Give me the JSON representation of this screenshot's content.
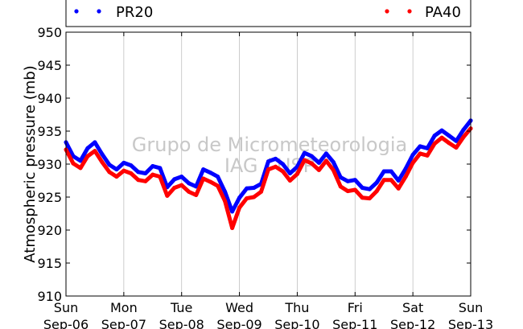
{
  "chart_data": {
    "type": "scatter",
    "ylabel": "Atmospheric pressure (mb)",
    "ylim": [
      910,
      950
    ],
    "yticks": [
      "910",
      "915",
      "920",
      "925",
      "930",
      "935",
      "940",
      "945",
      "950"
    ],
    "x_start": "2015-09-06 00:00",
    "x_end": "2015-09-13 00:00",
    "xticks": [
      {
        "day": "Sun",
        "date": "Sep-06"
      },
      {
        "day": "Mon",
        "date": "Sep-07"
      },
      {
        "day": "Tue",
        "date": "Sep-08"
      },
      {
        "day": "Wed",
        "date": "Sep-09"
      },
      {
        "day": "Thu",
        "date": "Sep-10"
      },
      {
        "day": "Fri",
        "date": "Sep-11"
      },
      {
        "day": "Sat",
        "date": "Sep-12"
      },
      {
        "day": "Sun",
        "date": "Sep-13"
      }
    ],
    "grid": true,
    "legend_position": "top",
    "watermark": [
      "Grupo de Micrometeorologia",
      "IAG / USP"
    ],
    "series": [
      {
        "name": "PR20",
        "color": "#0000ff",
        "points": [
          [
            "2015-09-06 00:00",
            933.3
          ],
          [
            "2015-09-06 03:00",
            931.2
          ],
          [
            "2015-09-06 06:00",
            930.5
          ],
          [
            "2015-09-06 09:00",
            932.4
          ],
          [
            "2015-09-06 12:00",
            933.3
          ],
          [
            "2015-09-06 15:00",
            931.5
          ],
          [
            "2015-09-06 18:00",
            929.9
          ],
          [
            "2015-09-06 21:00",
            929.2
          ],
          [
            "2015-09-07 00:00",
            930.2
          ],
          [
            "2015-09-07 03:00",
            929.8
          ],
          [
            "2015-09-07 06:00",
            928.8
          ],
          [
            "2015-09-07 09:00",
            928.6
          ],
          [
            "2015-09-07 12:00",
            929.7
          ],
          [
            "2015-09-07 15:00",
            929.4
          ],
          [
            "2015-09-07 18:00",
            926.5
          ],
          [
            "2015-09-07 21:00",
            927.7
          ],
          [
            "2015-09-08 00:00",
            928.1
          ],
          [
            "2015-09-08 03:00",
            927.1
          ],
          [
            "2015-09-08 06:00",
            926.6
          ],
          [
            "2015-09-08 09:00",
            929.2
          ],
          [
            "2015-09-08 12:00",
            928.7
          ],
          [
            "2015-09-08 15:00",
            928.1
          ],
          [
            "2015-09-08 18:00",
            925.8
          ],
          [
            "2015-09-08 21:00",
            922.8
          ],
          [
            "2015-09-09 00:00",
            924.9
          ],
          [
            "2015-09-09 03:00",
            926.3
          ],
          [
            "2015-09-09 06:00",
            926.4
          ],
          [
            "2015-09-09 09:00",
            927.0
          ],
          [
            "2015-09-09 12:00",
            930.4
          ],
          [
            "2015-09-09 15:00",
            930.8
          ],
          [
            "2015-09-09 18:00",
            930.0
          ],
          [
            "2015-09-09 21:00",
            928.6
          ],
          [
            "2015-09-10 00:00",
            929.6
          ],
          [
            "2015-09-10 03:00",
            931.7
          ],
          [
            "2015-09-10 06:00",
            931.2
          ],
          [
            "2015-09-10 09:00",
            930.2
          ],
          [
            "2015-09-10 12:00",
            931.6
          ],
          [
            "2015-09-10 15:00",
            930.3
          ],
          [
            "2015-09-10 18:00",
            928.0
          ],
          [
            "2015-09-10 21:00",
            927.4
          ],
          [
            "2015-09-11 00:00",
            927.6
          ],
          [
            "2015-09-11 03:00",
            926.4
          ],
          [
            "2015-09-11 06:00",
            926.2
          ],
          [
            "2015-09-11 09:00",
            927.2
          ],
          [
            "2015-09-11 12:00",
            928.9
          ],
          [
            "2015-09-11 15:00",
            928.9
          ],
          [
            "2015-09-11 18:00",
            927.5
          ],
          [
            "2015-09-11 21:00",
            929.3
          ],
          [
            "2015-09-12 00:00",
            931.4
          ],
          [
            "2015-09-12 03:00",
            932.7
          ],
          [
            "2015-09-12 06:00",
            932.4
          ],
          [
            "2015-09-12 09:00",
            934.3
          ],
          [
            "2015-09-12 12:00",
            935.1
          ],
          [
            "2015-09-12 15:00",
            934.3
          ],
          [
            "2015-09-12 18:00",
            933.5
          ],
          [
            "2015-09-12 21:00",
            935.2
          ],
          [
            "2015-09-13 00:00",
            936.6
          ]
        ]
      },
      {
        "name": "PA40",
        "color": "#ff0000",
        "points": [
          [
            "2015-09-06 00:00",
            932.2
          ],
          [
            "2015-09-06 03:00",
            930.1
          ],
          [
            "2015-09-06 06:00",
            929.4
          ],
          [
            "2015-09-06 09:00",
            931.2
          ],
          [
            "2015-09-06 12:00",
            932.0
          ],
          [
            "2015-09-06 15:00",
            930.3
          ],
          [
            "2015-09-06 18:00",
            928.8
          ],
          [
            "2015-09-06 21:00",
            928.1
          ],
          [
            "2015-09-07 00:00",
            929.0
          ],
          [
            "2015-09-07 03:00",
            928.6
          ],
          [
            "2015-09-07 06:00",
            927.6
          ],
          [
            "2015-09-07 09:00",
            927.4
          ],
          [
            "2015-09-07 12:00",
            928.4
          ],
          [
            "2015-09-07 15:00",
            928.1
          ],
          [
            "2015-09-07 18:00",
            925.2
          ],
          [
            "2015-09-07 21:00",
            926.4
          ],
          [
            "2015-09-08 00:00",
            926.8
          ],
          [
            "2015-09-08 03:00",
            925.8
          ],
          [
            "2015-09-08 06:00",
            925.3
          ],
          [
            "2015-09-08 09:00",
            927.8
          ],
          [
            "2015-09-08 12:00",
            927.3
          ],
          [
            "2015-09-08 15:00",
            926.7
          ],
          [
            "2015-09-08 18:00",
            924.4
          ],
          [
            "2015-09-08 21:00",
            920.3
          ],
          [
            "2015-09-09 00:00",
            923.4
          ],
          [
            "2015-09-09 03:00",
            924.8
          ],
          [
            "2015-09-09 06:00",
            925.0
          ],
          [
            "2015-09-09 09:00",
            925.8
          ],
          [
            "2015-09-09 12:00",
            929.2
          ],
          [
            "2015-09-09 15:00",
            929.6
          ],
          [
            "2015-09-09 18:00",
            928.9
          ],
          [
            "2015-09-09 21:00",
            927.5
          ],
          [
            "2015-09-10 00:00",
            928.5
          ],
          [
            "2015-09-10 03:00",
            930.6
          ],
          [
            "2015-09-10 06:00",
            930.1
          ],
          [
            "2015-09-10 09:00",
            929.1
          ],
          [
            "2015-09-10 12:00",
            930.5
          ],
          [
            "2015-09-10 15:00",
            929.1
          ],
          [
            "2015-09-10 18:00",
            926.6
          ],
          [
            "2015-09-10 21:00",
            925.9
          ],
          [
            "2015-09-11 00:00",
            926.1
          ],
          [
            "2015-09-11 03:00",
            924.9
          ],
          [
            "2015-09-11 06:00",
            924.8
          ],
          [
            "2015-09-11 09:00",
            925.9
          ],
          [
            "2015-09-11 12:00",
            927.6
          ],
          [
            "2015-09-11 15:00",
            927.6
          ],
          [
            "2015-09-11 18:00",
            926.3
          ],
          [
            "2015-09-11 21:00",
            928.1
          ],
          [
            "2015-09-12 00:00",
            930.2
          ],
          [
            "2015-09-12 03:00",
            931.6
          ],
          [
            "2015-09-12 06:00",
            931.3
          ],
          [
            "2015-09-12 09:00",
            933.1
          ],
          [
            "2015-09-12 12:00",
            934.0
          ],
          [
            "2015-09-12 15:00",
            933.2
          ],
          [
            "2015-09-12 18:00",
            932.5
          ],
          [
            "2015-09-12 21:00",
            934.1
          ],
          [
            "2015-09-13 00:00",
            935.4
          ]
        ]
      }
    ]
  }
}
